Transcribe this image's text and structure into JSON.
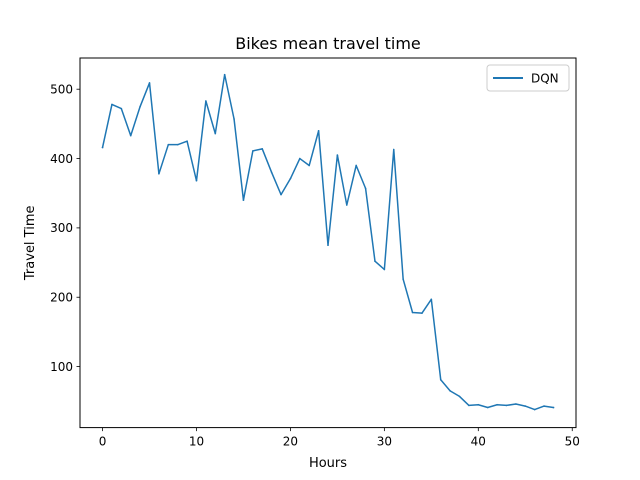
{
  "chart_data": {
    "type": "line",
    "title": "Bikes mean travel time",
    "xlabel": "Hours",
    "ylabel": "Travel Time",
    "xlim": [
      -2.4,
      50.4
    ],
    "ylim": [
      12,
      545
    ],
    "xticks": [
      0,
      10,
      20,
      30,
      40,
      50
    ],
    "yticks": [
      100,
      200,
      300,
      400,
      500
    ],
    "grid": false,
    "legend_position": "top-right",
    "series": [
      {
        "name": "DQN",
        "color": "#1f77b4",
        "x": [
          0,
          1,
          2,
          3,
          4,
          5,
          6,
          7,
          8,
          9,
          10,
          11,
          12,
          13,
          14,
          15,
          16,
          17,
          18,
          19,
          20,
          21,
          22,
          23,
          24,
          25,
          26,
          27,
          28,
          29,
          30,
          31,
          32,
          33,
          34,
          35,
          36,
          37,
          38,
          39,
          40,
          41,
          42,
          43,
          44,
          45,
          46,
          47,
          48
        ],
        "y": [
          416,
          478,
          472,
          433,
          475,
          509,
          378,
          420,
          420,
          425,
          368,
          483,
          436,
          521,
          457,
          340,
          411,
          414,
          380,
          348,
          371,
          400,
          390,
          440,
          275,
          405,
          333,
          390,
          357,
          252,
          240,
          413,
          226,
          178,
          177,
          197,
          81,
          65,
          57,
          44,
          45,
          41,
          45,
          44,
          46,
          43,
          38,
          43,
          41
        ]
      }
    ]
  }
}
